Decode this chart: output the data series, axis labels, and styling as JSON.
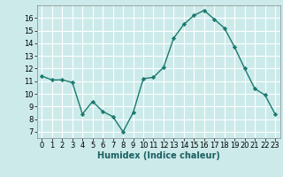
{
  "x": [
    0,
    1,
    2,
    3,
    4,
    5,
    6,
    7,
    8,
    9,
    10,
    11,
    12,
    13,
    14,
    15,
    16,
    17,
    18,
    19,
    20,
    21,
    22,
    23
  ],
  "y": [
    11.4,
    11.1,
    11.1,
    10.9,
    8.4,
    9.4,
    8.6,
    8.2,
    7.0,
    8.5,
    11.2,
    11.3,
    12.1,
    14.4,
    15.5,
    16.2,
    16.6,
    15.9,
    15.2,
    13.7,
    12.0,
    10.4,
    9.9,
    8.4
  ],
  "line_color": "#1a7a6e",
  "marker": "D",
  "marker_size": 2.2,
  "bg_color": "#cceaea",
  "grid_color": "#ffffff",
  "xlabel": "Humidex (Indice chaleur)",
  "xlabel_fontsize": 7,
  "ylim": [
    6.5,
    17
  ],
  "xlim": [
    -0.5,
    23.5
  ],
  "yticks": [
    7,
    8,
    9,
    10,
    11,
    12,
    13,
    14,
    15,
    16
  ],
  "xticks": [
    0,
    1,
    2,
    3,
    4,
    5,
    6,
    7,
    8,
    9,
    10,
    11,
    12,
    13,
    14,
    15,
    16,
    17,
    18,
    19,
    20,
    21,
    22,
    23
  ],
  "tick_fontsize": 6
}
